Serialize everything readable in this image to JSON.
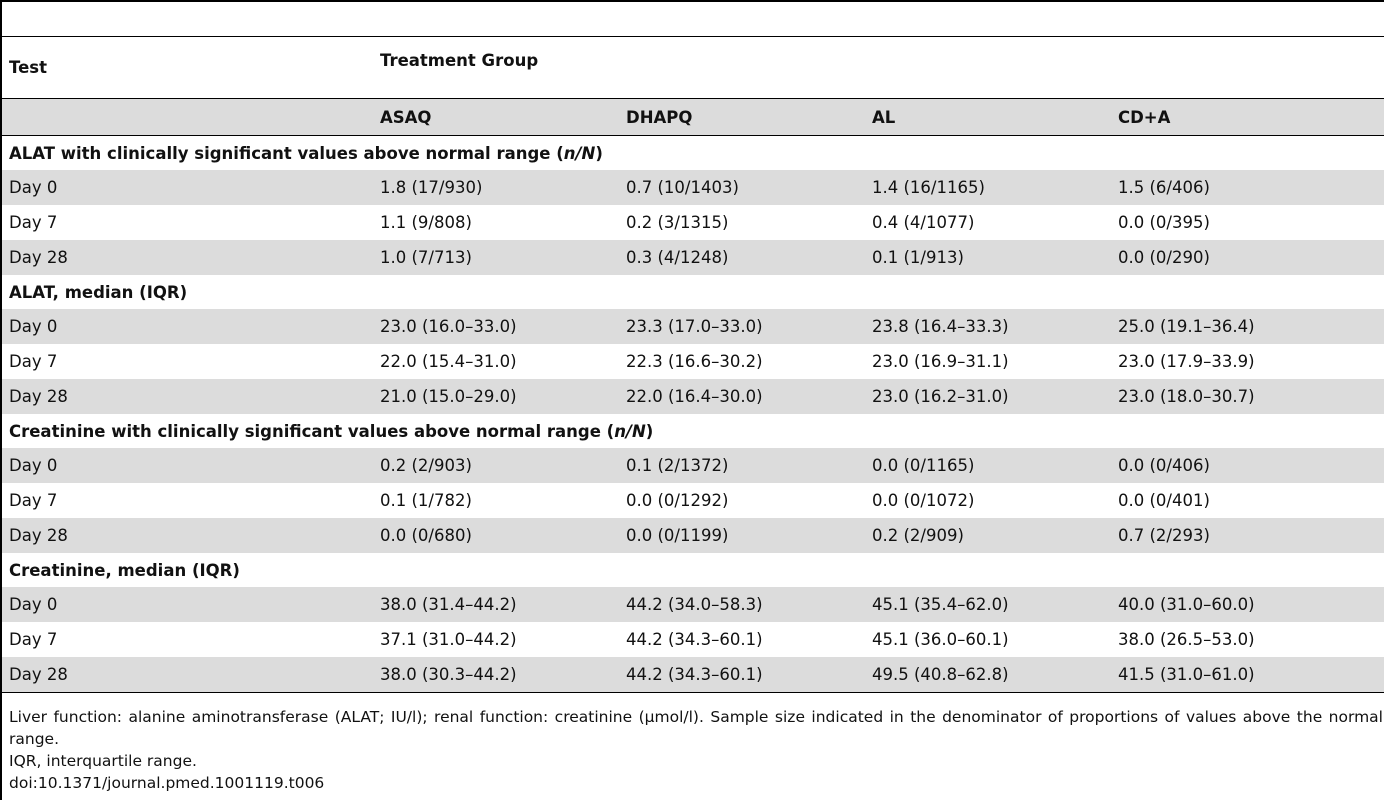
{
  "table": {
    "header": {
      "test_label": "Test",
      "group_label": "Treatment Group",
      "columns": [
        "ASAQ",
        "DHAPQ",
        "AL",
        "CD+A"
      ]
    },
    "sections": [
      {
        "title_main": "ALAT with clinically significant values above normal range (",
        "title_italic": "n/N",
        "title_end": ")",
        "rows": [
          {
            "label": "Day 0",
            "values": [
              "1.8 (17/930)",
              "0.7 (10/1403)",
              "1.4 (16/1165)",
              "1.5 (6/406)"
            ]
          },
          {
            "label": "Day 7",
            "values": [
              "1.1 (9/808)",
              "0.2 (3/1315)",
              "0.4 (4/1077)",
              "0.0 (0/395)"
            ]
          },
          {
            "label": "Day 28",
            "values": [
              "1.0 (7/713)",
              "0.3 (4/1248)",
              "0.1 (1/913)",
              "0.0 (0/290)"
            ]
          }
        ]
      },
      {
        "title_main": "ALAT, median (IQR)",
        "title_italic": "",
        "title_end": "",
        "rows": [
          {
            "label": "Day 0",
            "values": [
              "23.0 (16.0–33.0)",
              "23.3 (17.0–33.0)",
              "23.8 (16.4–33.3)",
              "25.0 (19.1–36.4)"
            ]
          },
          {
            "label": "Day 7",
            "values": [
              "22.0 (15.4–31.0)",
              "22.3 (16.6–30.2)",
              "23.0 (16.9–31.1)",
              "23.0 (17.9–33.9)"
            ]
          },
          {
            "label": "Day 28",
            "values": [
              "21.0 (15.0–29.0)",
              "22.0 (16.4–30.0)",
              "23.0 (16.2–31.0)",
              "23.0 (18.0–30.7)"
            ]
          }
        ]
      },
      {
        "title_main": "Creatinine with clinically significant values above normal range (",
        "title_italic": "n/N",
        "title_end": ")",
        "rows": [
          {
            "label": "Day 0",
            "values": [
              "0.2 (2/903)",
              "0.1 (2/1372)",
              "0.0 (0/1165)",
              "0.0 (0/406)"
            ]
          },
          {
            "label": "Day 7",
            "values": [
              "0.1 (1/782)",
              "0.0 (0/1292)",
              "0.0 (0/1072)",
              "0.0 (0/401)"
            ]
          },
          {
            "label": "Day 28",
            "values": [
              "0.0 (0/680)",
              "0.0 (0/1199)",
              "0.2 (2/909)",
              "0.7 (2/293)"
            ]
          }
        ]
      },
      {
        "title_main": "Creatinine, median (IQR)",
        "title_italic": "",
        "title_end": "",
        "rows": [
          {
            "label": "Day 0",
            "values": [
              "38.0 (31.4–44.2)",
              "44.2 (34.0–58.3)",
              "45.1 (35.4–62.0)",
              "40.0 (31.0–60.0)"
            ]
          },
          {
            "label": "Day 7",
            "values": [
              "37.1 (31.0–44.2)",
              "44.2 (34.3–60.1)",
              "45.1 (36.0–60.1)",
              "38.0 (26.5–53.0)"
            ]
          },
          {
            "label": "Day 28",
            "values": [
              "38.0 (30.3–44.2)",
              "44.2 (34.3–60.1)",
              "49.5 (40.8–62.8)",
              "41.5 (31.0–61.0)"
            ]
          }
        ]
      }
    ]
  },
  "footnotes": {
    "line1": "Liver function: alanine aminotransferase (ALAT; IU/l); renal function: creatinine (μmol/l). Sample size indicated in the denominator of proportions of values above the normal range.",
    "line2": "IQR, interquartile range.",
    "doi": "doi:10.1371/journal.pmed.1001119.t006"
  }
}
